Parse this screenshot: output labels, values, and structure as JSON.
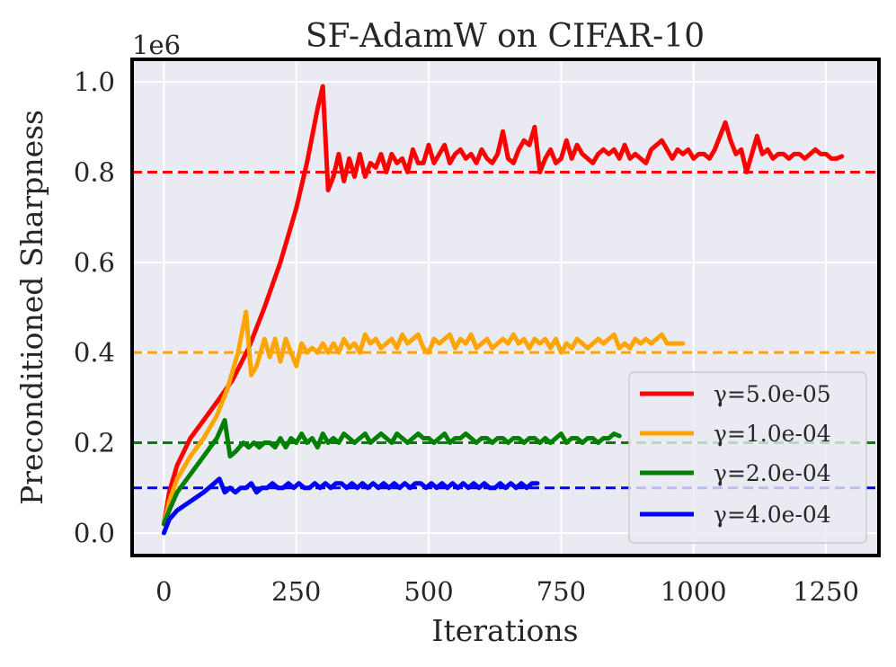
{
  "chart_data": {
    "type": "line",
    "title": "SF-AdamW on CIFAR-10",
    "xlabel": "Iterations",
    "ylabel": "Preconditioned Sharpness",
    "y_offset_label": "1e6",
    "xlim": [
      -60,
      1350
    ],
    "ylim": [
      -0.05,
      1.05
    ],
    "x_ticks": [
      0,
      250,
      500,
      750,
      1000,
      1250
    ],
    "x_tick_labels": [
      "0",
      "250",
      "500",
      "750",
      "1000",
      "1250"
    ],
    "y_ticks": [
      0.0,
      0.2,
      0.4,
      0.6,
      0.8,
      1.0
    ],
    "y_tick_labels": [
      "0.0",
      "0.2",
      "0.4",
      "0.6",
      "0.8",
      "1.0"
    ],
    "grid": true,
    "legend_position": "lower-right",
    "series": [
      {
        "name": "γ=5.0e-05",
        "legend_label": "γ=5.0e-05",
        "color": "#ff0000",
        "threshold": 0.8,
        "x": [
          0,
          10,
          25,
          50,
          75,
          100,
          130,
          160,
          190,
          220,
          250,
          270,
          290,
          300,
          310,
          320,
          330,
          340,
          350,
          360,
          370,
          380,
          390,
          400,
          410,
          420,
          430,
          440,
          450,
          460,
          470,
          480,
          490,
          500,
          510,
          520,
          530,
          540,
          550,
          560,
          570,
          580,
          590,
          600,
          610,
          620,
          630,
          640,
          650,
          660,
          670,
          680,
          690,
          700,
          710,
          720,
          730,
          740,
          750,
          760,
          770,
          780,
          790,
          800,
          810,
          820,
          830,
          840,
          850,
          860,
          870,
          880,
          890,
          900,
          910,
          920,
          930,
          940,
          950,
          960,
          970,
          980,
          990,
          1000,
          1010,
          1020,
          1030,
          1040,
          1050,
          1060,
          1070,
          1080,
          1090,
          1100,
          1110,
          1120,
          1130,
          1140,
          1150,
          1160,
          1170,
          1180,
          1190,
          1200,
          1210,
          1220,
          1230,
          1240,
          1250,
          1260,
          1270,
          1280
        ],
        "values": [
          0.02,
          0.09,
          0.15,
          0.21,
          0.25,
          0.29,
          0.34,
          0.41,
          0.5,
          0.6,
          0.72,
          0.82,
          0.94,
          0.99,
          0.76,
          0.79,
          0.84,
          0.78,
          0.83,
          0.79,
          0.84,
          0.79,
          0.82,
          0.81,
          0.84,
          0.8,
          0.84,
          0.82,
          0.83,
          0.8,
          0.85,
          0.82,
          0.82,
          0.86,
          0.82,
          0.84,
          0.86,
          0.82,
          0.84,
          0.85,
          0.83,
          0.84,
          0.82,
          0.85,
          0.83,
          0.82,
          0.84,
          0.89,
          0.83,
          0.82,
          0.85,
          0.87,
          0.86,
          0.9,
          0.8,
          0.83,
          0.85,
          0.82,
          0.83,
          0.87,
          0.83,
          0.86,
          0.84,
          0.83,
          0.82,
          0.84,
          0.85,
          0.84,
          0.85,
          0.83,
          0.86,
          0.83,
          0.84,
          0.83,
          0.82,
          0.85,
          0.86,
          0.87,
          0.85,
          0.83,
          0.85,
          0.84,
          0.85,
          0.83,
          0.84,
          0.84,
          0.83,
          0.85,
          0.88,
          0.91,
          0.87,
          0.84,
          0.85,
          0.8,
          0.84,
          0.88,
          0.84,
          0.85,
          0.83,
          0.84,
          0.84,
          0.83,
          0.84,
          0.84,
          0.83,
          0.84,
          0.85,
          0.84,
          0.84,
          0.83,
          0.83,
          0.835
        ]
      },
      {
        "name": "γ=1.0e-04",
        "legend_label": "γ=1.0e-04",
        "color": "#ffa500",
        "threshold": 0.4,
        "x": [
          0,
          10,
          25,
          50,
          75,
          100,
          120,
          140,
          155,
          165,
          175,
          190,
          200,
          210,
          220,
          230,
          240,
          250,
          260,
          270,
          280,
          290,
          300,
          310,
          320,
          330,
          340,
          350,
          360,
          370,
          380,
          390,
          400,
          410,
          420,
          430,
          440,
          450,
          460,
          470,
          480,
          490,
          500,
          510,
          520,
          530,
          540,
          550,
          560,
          570,
          580,
          590,
          600,
          610,
          620,
          630,
          640,
          650,
          660,
          670,
          680,
          690,
          700,
          710,
          720,
          730,
          740,
          750,
          760,
          770,
          780,
          790,
          800,
          810,
          820,
          830,
          840,
          850,
          860,
          870,
          880,
          890,
          900,
          910,
          920,
          930,
          940,
          950,
          960,
          970,
          980
        ],
        "values": [
          0.02,
          0.07,
          0.12,
          0.17,
          0.21,
          0.26,
          0.32,
          0.4,
          0.49,
          0.35,
          0.37,
          0.43,
          0.39,
          0.43,
          0.38,
          0.43,
          0.4,
          0.37,
          0.42,
          0.4,
          0.41,
          0.4,
          0.42,
          0.4,
          0.42,
          0.4,
          0.43,
          0.41,
          0.42,
          0.4,
          0.44,
          0.42,
          0.43,
          0.41,
          0.42,
          0.43,
          0.41,
          0.44,
          0.42,
          0.43,
          0.44,
          0.41,
          0.4,
          0.43,
          0.42,
          0.43,
          0.44,
          0.41,
          0.43,
          0.42,
          0.44,
          0.41,
          0.42,
          0.43,
          0.41,
          0.42,
          0.43,
          0.42,
          0.44,
          0.42,
          0.43,
          0.41,
          0.43,
          0.42,
          0.43,
          0.41,
          0.43,
          0.4,
          0.42,
          0.41,
          0.43,
          0.42,
          0.41,
          0.42,
          0.43,
          0.42,
          0.43,
          0.44,
          0.41,
          0.42,
          0.41,
          0.43,
          0.42,
          0.43,
          0.42,
          0.43,
          0.44,
          0.42,
          0.42,
          0.42,
          0.42
        ]
      },
      {
        "name": "γ=2.0e-04",
        "legend_label": "γ=2.0e-04",
        "color": "#008000",
        "threshold": 0.2,
        "x": [
          0,
          10,
          25,
          50,
          75,
          100,
          115,
          125,
          135,
          150,
          160,
          170,
          180,
          190,
          200,
          210,
          220,
          230,
          240,
          250,
          260,
          270,
          280,
          290,
          300,
          310,
          320,
          330,
          340,
          350,
          360,
          370,
          380,
          390,
          400,
          410,
          420,
          430,
          440,
          450,
          460,
          470,
          480,
          490,
          500,
          510,
          520,
          530,
          540,
          550,
          560,
          570,
          580,
          590,
          600,
          610,
          620,
          630,
          640,
          650,
          660,
          670,
          680,
          690,
          700,
          710,
          720,
          730,
          740,
          750,
          760,
          770,
          780,
          790,
          800,
          810,
          820,
          830,
          840,
          850,
          860
        ],
        "values": [
          0.02,
          0.05,
          0.09,
          0.13,
          0.17,
          0.21,
          0.25,
          0.17,
          0.18,
          0.2,
          0.19,
          0.2,
          0.19,
          0.2,
          0.2,
          0.19,
          0.21,
          0.19,
          0.21,
          0.2,
          0.22,
          0.2,
          0.21,
          0.19,
          0.22,
          0.2,
          0.21,
          0.2,
          0.22,
          0.21,
          0.2,
          0.21,
          0.22,
          0.2,
          0.21,
          0.22,
          0.21,
          0.2,
          0.22,
          0.21,
          0.2,
          0.21,
          0.22,
          0.21,
          0.21,
          0.2,
          0.21,
          0.22,
          0.2,
          0.21,
          0.21,
          0.22,
          0.21,
          0.2,
          0.21,
          0.21,
          0.2,
          0.21,
          0.21,
          0.2,
          0.21,
          0.21,
          0.2,
          0.21,
          0.21,
          0.2,
          0.21,
          0.2,
          0.21,
          0.22,
          0.2,
          0.21,
          0.21,
          0.2,
          0.21,
          0.21,
          0.2,
          0.21,
          0.21,
          0.22,
          0.215
        ]
      },
      {
        "name": "γ=4.0e-04",
        "legend_label": "γ=4.0e-04",
        "color": "#0000ff",
        "threshold": 0.1,
        "x": [
          0,
          10,
          25,
          50,
          75,
          95,
          105,
          115,
          125,
          135,
          145,
          155,
          165,
          175,
          185,
          195,
          205,
          215,
          225,
          235,
          245,
          255,
          265,
          275,
          285,
          295,
          305,
          315,
          325,
          335,
          345,
          355,
          365,
          375,
          385,
          395,
          405,
          415,
          425,
          435,
          445,
          455,
          465,
          475,
          485,
          495,
          505,
          515,
          525,
          535,
          545,
          555,
          565,
          575,
          585,
          595,
          605,
          615,
          625,
          635,
          645,
          655,
          665,
          675,
          685,
          695,
          705
        ],
        "values": [
          0.0,
          0.03,
          0.05,
          0.07,
          0.09,
          0.11,
          0.12,
          0.09,
          0.1,
          0.09,
          0.1,
          0.1,
          0.11,
          0.09,
          0.1,
          0.1,
          0.11,
          0.1,
          0.1,
          0.11,
          0.1,
          0.11,
          0.1,
          0.1,
          0.11,
          0.1,
          0.11,
          0.1,
          0.11,
          0.11,
          0.1,
          0.11,
          0.1,
          0.11,
          0.1,
          0.11,
          0.1,
          0.11,
          0.1,
          0.11,
          0.1,
          0.11,
          0.1,
          0.11,
          0.11,
          0.1,
          0.11,
          0.1,
          0.11,
          0.1,
          0.11,
          0.1,
          0.11,
          0.1,
          0.11,
          0.1,
          0.11,
          0.1,
          0.1,
          0.11,
          0.1,
          0.11,
          0.1,
          0.11,
          0.1,
          0.11,
          0.11
        ]
      }
    ]
  }
}
